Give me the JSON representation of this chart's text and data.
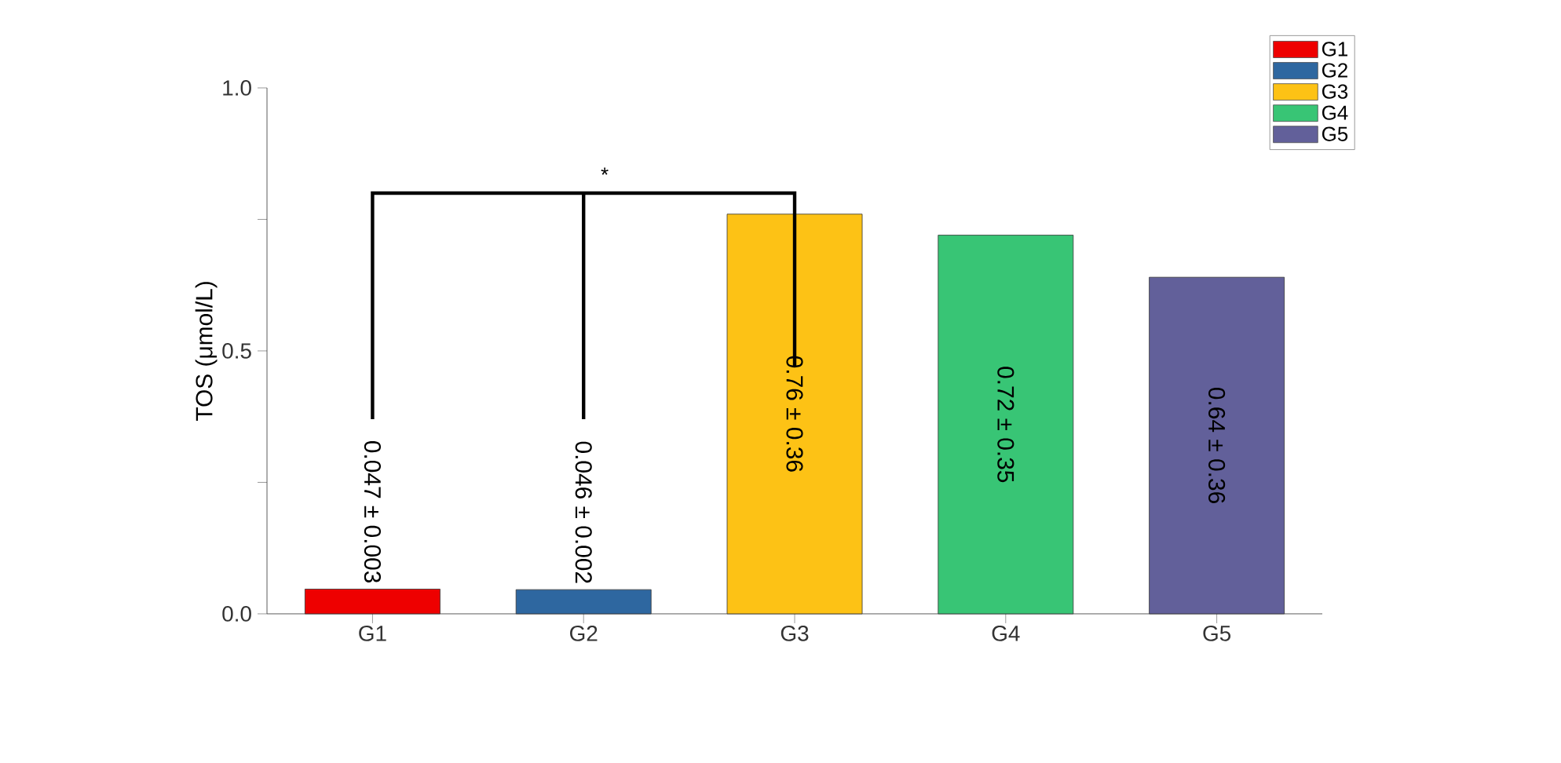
{
  "chart_data": {
    "type": "bar",
    "ylabel": "TOS (μmol/L)",
    "categories": [
      "G1",
      "G2",
      "G3",
      "G4",
      "G5"
    ],
    "series": [
      {
        "name": "G1",
        "color": "#ee0000",
        "values": [
          0.047,
          null,
          null,
          null,
          null
        ],
        "value_labels": [
          "0.047 ± 0.003",
          null,
          null,
          null,
          null
        ]
      },
      {
        "name": "G2",
        "color": "#2e67a0",
        "values": [
          null,
          0.046,
          null,
          null,
          null
        ],
        "value_labels": [
          null,
          "0.046 ± 0.002",
          null,
          null,
          null
        ]
      },
      {
        "name": "G3",
        "color": "#fdc215",
        "values": [
          null,
          null,
          0.76,
          null,
          null
        ],
        "value_labels": [
          null,
          null,
          "0.76 ± 0.36",
          null,
          null
        ]
      },
      {
        "name": "G4",
        "color": "#38c575",
        "values": [
          null,
          null,
          null,
          0.72,
          null
        ],
        "value_labels": [
          null,
          null,
          null,
          "0.72 ± 0.35",
          null
        ]
      },
      {
        "name": "G5",
        "color": "#62609a",
        "values": [
          null,
          null,
          null,
          null,
          0.64
        ],
        "value_labels": [
          null,
          null,
          null,
          null,
          "0.64 ± 0.36"
        ]
      }
    ],
    "ylim": [
      0,
      1.0
    ],
    "yticks": [
      {
        "value": 0,
        "label": "0.0"
      },
      {
        "value": 0.25,
        "label": null
      },
      {
        "value": 0.5,
        "label": "0.5"
      },
      {
        "value": 0.75,
        "label": null
      },
      {
        "value": 1.0,
        "label": "1.0"
      }
    ],
    "annotations": [
      "*"
    ],
    "legend": "top right"
  }
}
